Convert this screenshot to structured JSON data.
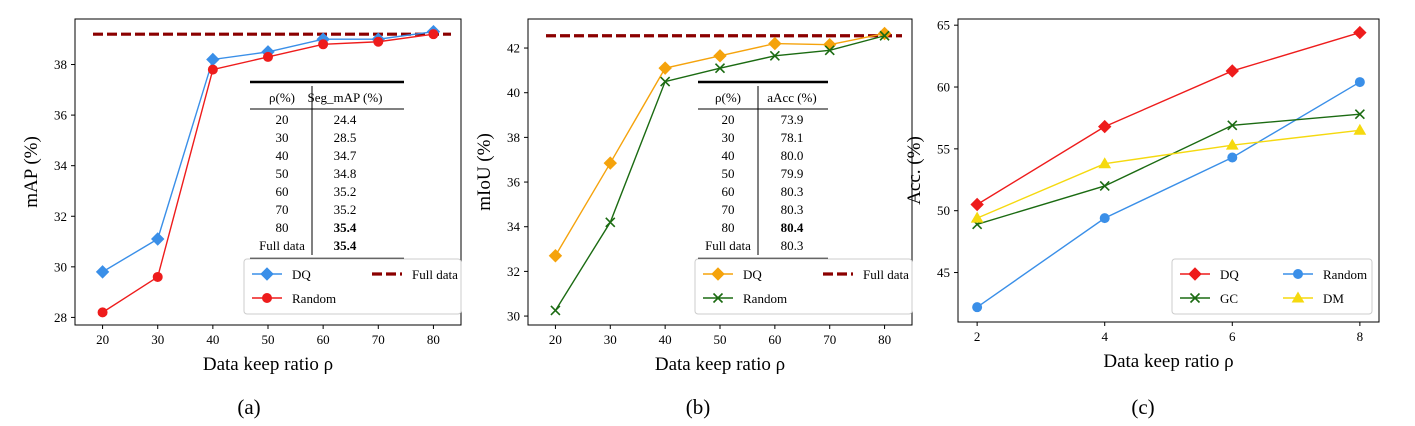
{
  "chart_data": [
    {
      "type": "line",
      "caption": "(a)",
      "xlabel": "Data keep ratio ρ",
      "ylabel": "mAP (%)",
      "x": [
        20,
        30,
        40,
        50,
        60,
        70,
        80
      ],
      "xlim": [
        15,
        85
      ],
      "ylim": [
        27.7,
        39.8
      ],
      "yticks": [
        28,
        30,
        32,
        34,
        36,
        38
      ],
      "series": [
        {
          "name": "DQ",
          "color": "#3a8fe8",
          "marker": "diamond",
          "values": [
            29.8,
            31.1,
            38.2,
            38.5,
            39.0,
            39.0,
            39.3
          ]
        },
        {
          "name": "Random",
          "color": "#ee1c1c",
          "marker": "circle",
          "values": [
            28.2,
            29.6,
            37.8,
            38.3,
            38.8,
            38.9,
            39.2
          ]
        }
      ],
      "reference": {
        "name": "Full data",
        "color": "#8b0000",
        "value": 39.2
      },
      "legend": {
        "position": "lower-right",
        "entries": [
          "DQ",
          "Full data",
          "Random"
        ]
      },
      "table": {
        "headers": [
          "ρ(%)",
          "Seg_mAP (%)"
        ],
        "rows": [
          [
            "20",
            "24.4"
          ],
          [
            "30",
            "28.5"
          ],
          [
            "40",
            "34.7"
          ],
          [
            "50",
            "34.8"
          ],
          [
            "60",
            "35.2"
          ],
          [
            "70",
            "35.2"
          ],
          [
            "80",
            "35.4"
          ],
          [
            "Full data",
            "35.4"
          ]
        ],
        "bold_values": [
          "35.4"
        ]
      }
    },
    {
      "type": "line",
      "caption": "(b)",
      "xlabel": "Data keep ratio ρ",
      "ylabel": "mIoU (%)",
      "x": [
        20,
        30,
        40,
        50,
        60,
        70,
        80
      ],
      "xlim": [
        15,
        85
      ],
      "ylim": [
        29.6,
        43.3
      ],
      "yticks": [
        30,
        32,
        34,
        36,
        38,
        40,
        42
      ],
      "series": [
        {
          "name": "DQ",
          "color": "#f5a30c",
          "marker": "diamond",
          "values": [
            32.7,
            36.85,
            41.1,
            41.65,
            42.2,
            42.15,
            42.65
          ]
        },
        {
          "name": "Random",
          "color": "#1b6b12",
          "marker": "x",
          "values": [
            30.25,
            34.2,
            40.5,
            41.1,
            41.65,
            41.9,
            42.55
          ]
        }
      ],
      "reference": {
        "name": "Full data",
        "color": "#8b0000",
        "value": 42.55
      },
      "legend": {
        "position": "lower-right",
        "entries": [
          "DQ",
          "Full data",
          "Random"
        ]
      },
      "table": {
        "headers": [
          "ρ(%)",
          "aAcc (%)"
        ],
        "rows": [
          [
            "20",
            "73.9"
          ],
          [
            "30",
            "78.1"
          ],
          [
            "40",
            "80.0"
          ],
          [
            "50",
            "79.9"
          ],
          [
            "60",
            "80.3"
          ],
          [
            "70",
            "80.3"
          ],
          [
            "80",
            "80.4"
          ],
          [
            "Full data",
            "80.3"
          ]
        ],
        "bold_values": [
          "80.4"
        ]
      }
    },
    {
      "type": "line",
      "caption": "(c)",
      "xlabel": "Data keep ratio ρ",
      "ylabel": "Acc. (%)",
      "x": [
        2,
        4,
        6,
        8
      ],
      "xlim": [
        1.7,
        8.3
      ],
      "ylim": [
        41,
        65.5
      ],
      "yticks": [
        45,
        50,
        55,
        60,
        65
      ],
      "series": [
        {
          "name": "DQ",
          "color": "#ee1c1c",
          "marker": "diamond",
          "values": [
            50.5,
            56.8,
            61.3,
            64.4
          ]
        },
        {
          "name": "Random",
          "color": "#3a8fe8",
          "marker": "circle",
          "values": [
            42.2,
            49.4,
            54.3,
            60.4
          ]
        },
        {
          "name": "GC",
          "color": "#1b6b12",
          "marker": "x",
          "values": [
            48.9,
            52.0,
            56.9,
            57.8
          ]
        },
        {
          "name": "DM",
          "color": "#f5d90f",
          "marker": "triangle",
          "values": [
            49.4,
            53.8,
            55.3,
            56.5
          ]
        }
      ],
      "legend": {
        "position": "lower-right",
        "entries": [
          "DQ",
          "Random",
          "GC",
          "DM"
        ]
      }
    }
  ]
}
